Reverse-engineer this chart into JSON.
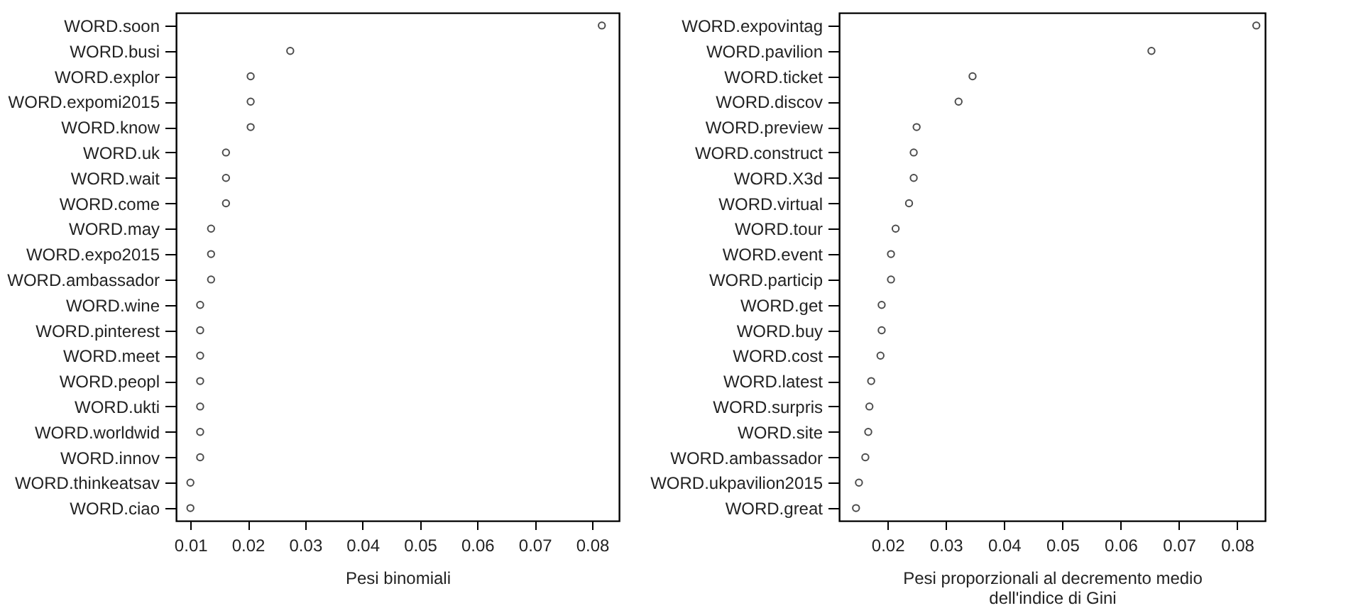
{
  "chart_data": [
    {
      "type": "scatter",
      "orientation": "horizontal",
      "xlabel": "Pesi binomiali",
      "marker": "circle",
      "grid": false,
      "categories": [
        "WORD.soon",
        "WORD.busi",
        "WORD.explor",
        "WORD.expomi2015",
        "WORD.know",
        "WORD.uk",
        "WORD.wait",
        "WORD.come",
        "WORD.may",
        "WORD.expo2015",
        "WORD.ambassador",
        "WORD.wine",
        "WORD.pinterest",
        "WORD.meet",
        "WORD.peopl",
        "WORD.ukti",
        "WORD.worldwid",
        "WORD.innov",
        "WORD.thinkeatsav",
        "WORD.ciao"
      ],
      "series": [
        {
          "color": "#000000",
          "values": [
            0.0817,
            0.0274,
            0.0205,
            0.0205,
            0.0205,
            0.0162,
            0.0162,
            0.0162,
            0.0136,
            0.0136,
            0.0136,
            0.0117,
            0.0117,
            0.0117,
            0.0117,
            0.0117,
            0.0117,
            0.0117,
            0.01,
            0.01
          ]
        }
      ],
      "xlim": [
        0.0075,
        0.0847
      ],
      "xticks": [
        0.01,
        0.02,
        0.03,
        0.04,
        0.05,
        0.06,
        0.07,
        0.08
      ]
    },
    {
      "type": "scatter",
      "orientation": "horizontal",
      "xlabel": "Pesi proporzionali al decremento medio\ndell'indice di Gini",
      "marker": "circle",
      "grid": false,
      "categories": [
        "WORD.expovintag",
        "WORD.pavilion",
        "WORD.ticket",
        "WORD.discov",
        "WORD.preview",
        "WORD.construct",
        "WORD.X3d",
        "WORD.virtual",
        "WORD.tour",
        "WORD.event",
        "WORD.particip",
        "WORD.get",
        "WORD.buy",
        "WORD.cost",
        "WORD.latest",
        "WORD.surpris",
        "WORD.site",
        "WORD.ambassador",
        "WORD.ukpavilion2015",
        "WORD.great"
      ],
      "series": [
        {
          "color": "#000000",
          "values": [
            0.0833,
            0.0653,
            0.0346,
            0.0322,
            0.025,
            0.0245,
            0.0245,
            0.0237,
            0.0214,
            0.0206,
            0.0206,
            0.019,
            0.019,
            0.0188,
            0.0172,
            0.0169,
            0.0167,
            0.0162,
            0.0151,
            0.0146
          ]
        }
      ],
      "xlim": [
        0.0117,
        0.0848
      ],
      "xticks": [
        0.02,
        0.03,
        0.04,
        0.05,
        0.06,
        0.07,
        0.08
      ]
    }
  ]
}
